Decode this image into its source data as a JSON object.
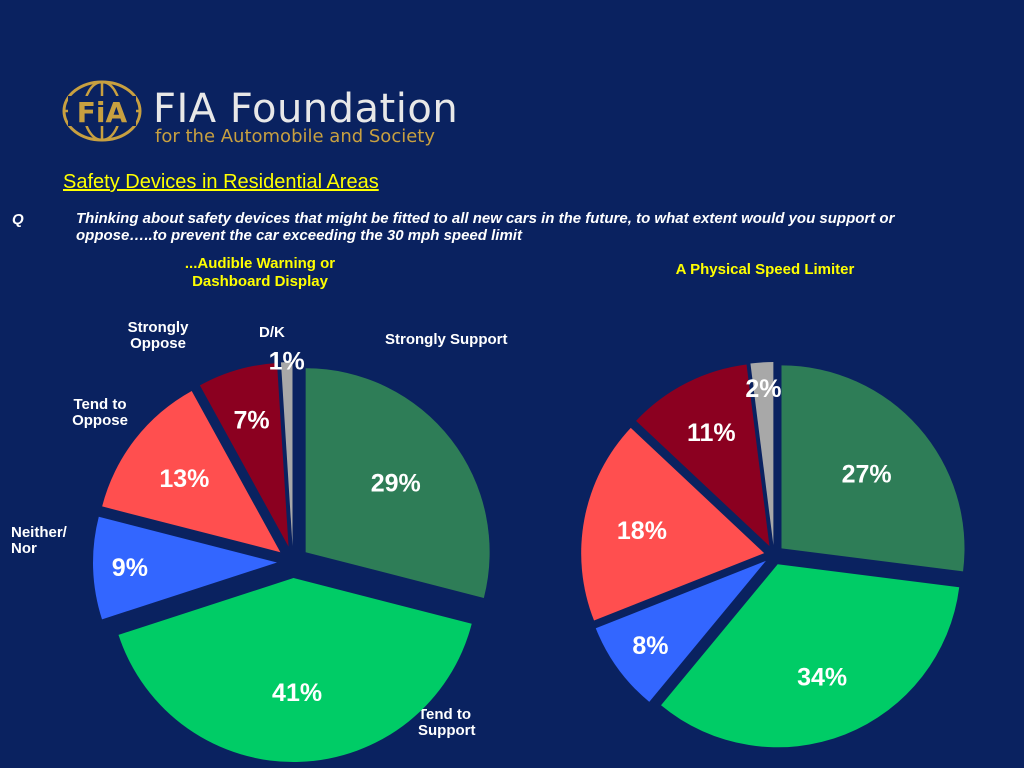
{
  "logo": {
    "emblem": "FiA",
    "name": "FIA Foundation",
    "tagline": "for the Automobile and Society"
  },
  "title": "Safety Devices in Residential Areas",
  "question": {
    "label": "Q",
    "text": "Thinking about safety devices that might be fitted to all new cars in the future, to what extent would you support or oppose…..to prevent the car exceeding the 30 mph speed limit"
  },
  "category_labels": {
    "strongly_oppose": "Strongly Oppose",
    "dk": "D/K",
    "strongly_support": "Strongly Support",
    "tend_to_oppose": "Tend to Oppose",
    "neither_nor": "Neither/ Nor",
    "tend_to_support": "Tend to Support"
  },
  "colors": {
    "background": "#0a2260",
    "title": "#ffff00",
    "strongly_support": "#2e7d57",
    "tend_to_support": "#00cc66",
    "neither_nor": "#3366ff",
    "tend_to_oppose": "#ff4f4f",
    "strongly_oppose": "#8b0020",
    "dk": "#a8a8a8"
  },
  "chart_data": [
    {
      "type": "pie",
      "title": "...Audible Warning or Dashboard Display",
      "slices": [
        {
          "label": "Strongly Support",
          "value": 29
        },
        {
          "label": "Tend to Support",
          "value": 41
        },
        {
          "label": "Neither/ Nor",
          "value": 9
        },
        {
          "label": "Tend to Oppose",
          "value": 13
        },
        {
          "label": "Strongly Oppose",
          "value": 7
        },
        {
          "label": "D/K",
          "value": 1
        }
      ],
      "value_labels": [
        "29%",
        "41%",
        "9%",
        "13%",
        "7%",
        "1%"
      ]
    },
    {
      "type": "pie",
      "title": "A Physical Speed Limiter",
      "slices": [
        {
          "label": "Strongly Support",
          "value": 27
        },
        {
          "label": "Tend to Support",
          "value": 34
        },
        {
          "label": "Neither/ Nor",
          "value": 8
        },
        {
          "label": "Tend to Oppose",
          "value": 18
        },
        {
          "label": "Strongly Oppose",
          "value": 11
        },
        {
          "label": "D/K",
          "value": 2
        }
      ],
      "value_labels": [
        "27%",
        "34%",
        "8%",
        "18%",
        "11%",
        "2%"
      ]
    }
  ]
}
